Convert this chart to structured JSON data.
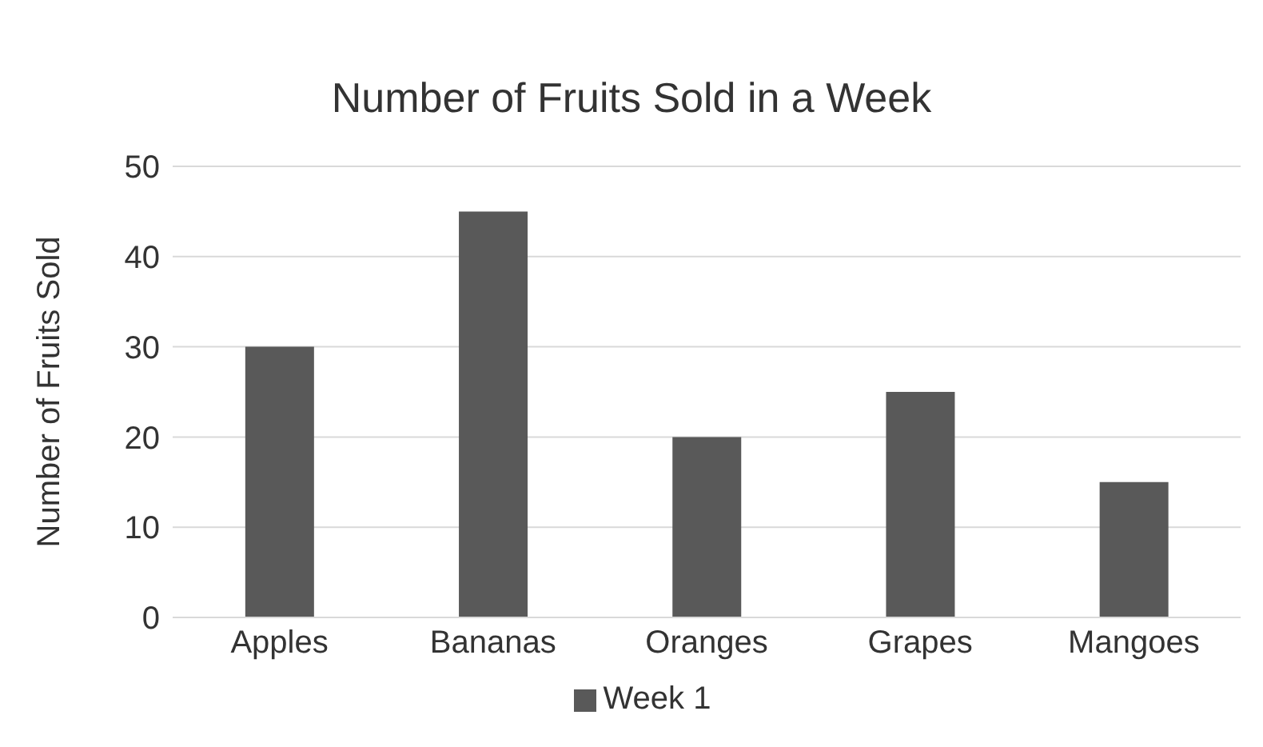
{
  "chart_data": {
    "type": "bar",
    "title": "Number of Fruits Sold in a Week",
    "ylabel": "Number of Fruits Sold",
    "categories": [
      "Apples",
      "Bananas",
      "Oranges",
      "Grapes",
      "Mangoes"
    ],
    "series": [
      {
        "name": "Week 1",
        "color": "#595959",
        "values": [
          30,
          45,
          20,
          25,
          15
        ]
      }
    ],
    "ylim": [
      0,
      50
    ],
    "yticks": [
      0,
      10,
      20,
      30,
      40,
      50
    ],
    "grid": "y",
    "legend": "bottom"
  }
}
